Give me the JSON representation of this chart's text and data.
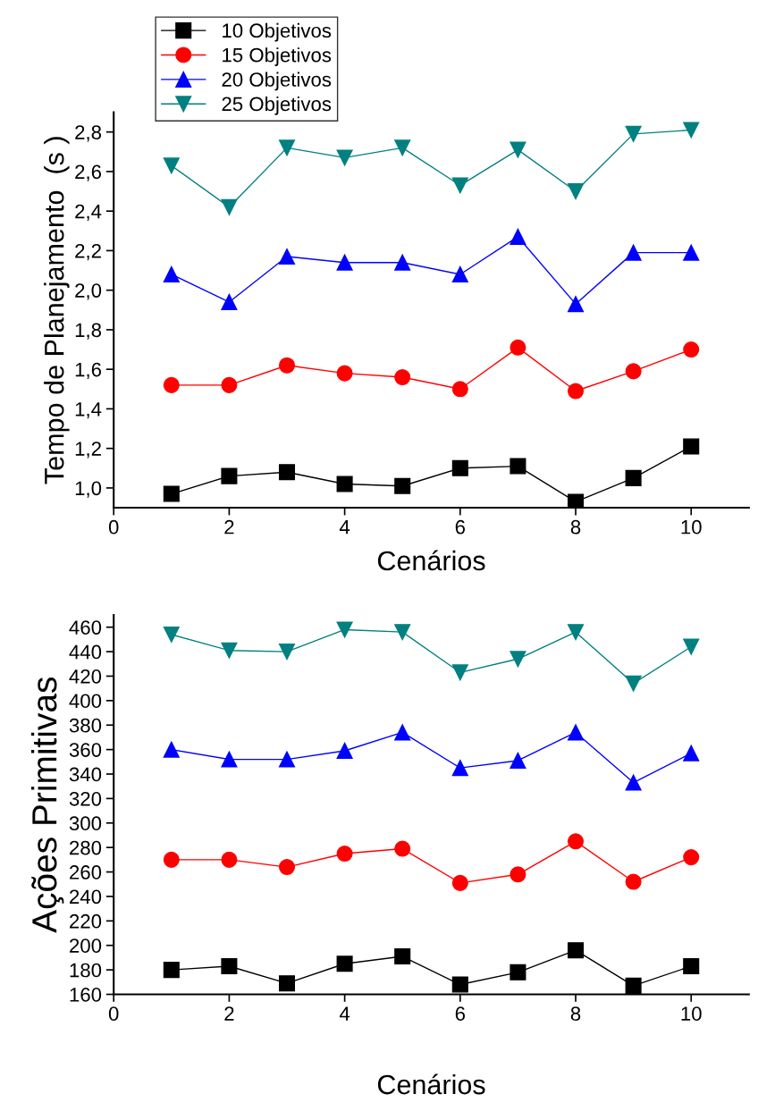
{
  "chart_data": [
    {
      "type": "line",
      "xlabel": "Cenários",
      "ylabel": "Tempo de Planejamento  (s )",
      "legend": "top left",
      "grid": false,
      "x": [
        1,
        2,
        3,
        4,
        5,
        6,
        7,
        8,
        9,
        10
      ],
      "xlim": [
        0,
        11
      ],
      "xticks": [
        0,
        2,
        4,
        6,
        8,
        10
      ],
      "ylim": [
        0.9,
        2.9
      ],
      "yticks": [
        {
          "value": 1.0,
          "label": "1,0"
        },
        {
          "value": 1.2,
          "label": "1,2"
        },
        {
          "value": 1.4,
          "label": "1,4"
        },
        {
          "value": 1.6,
          "label": "1,6"
        },
        {
          "value": 1.8,
          "label": "1,8"
        },
        {
          "value": 2.0,
          "label": "2,0"
        },
        {
          "value": 2.2,
          "label": "2,2"
        },
        {
          "value": 2.4,
          "label": "2,4"
        },
        {
          "value": 2.6,
          "label": "2,6"
        },
        {
          "value": 2.8,
          "label": "2,8"
        }
      ],
      "series": [
        {
          "name": "10 Objetivos",
          "color": "#000000",
          "marker": "square",
          "values": [
            0.97,
            1.06,
            1.08,
            1.02,
            1.01,
            1.1,
            1.11,
            0.93,
            1.05,
            1.21
          ]
        },
        {
          "name": "15 Objetivos",
          "color": "#ff0000",
          "marker": "circle",
          "values": [
            1.52,
            1.52,
            1.62,
            1.58,
            1.56,
            1.5,
            1.71,
            1.49,
            1.59,
            1.7
          ]
        },
        {
          "name": "20 Objetivos",
          "color": "#0000ff",
          "marker": "triangle",
          "values": [
            2.08,
            1.94,
            2.17,
            2.14,
            2.14,
            2.08,
            2.27,
            1.93,
            2.19,
            2.19
          ]
        },
        {
          "name": "25 Objetivos",
          "color": "#008080",
          "marker": "triangle_down",
          "values": [
            2.63,
            2.42,
            2.72,
            2.67,
            2.72,
            2.53,
            2.71,
            2.5,
            2.79,
            2.81
          ]
        }
      ]
    },
    {
      "type": "line",
      "xlabel": "Cenários",
      "ylabel": "Ações Primitivas",
      "legend": false,
      "grid": false,
      "x": [
        1,
        2,
        3,
        4,
        5,
        6,
        7,
        8,
        9,
        10
      ],
      "xlim": [
        0,
        11
      ],
      "xticks": [
        0,
        2,
        4,
        6,
        8,
        10
      ],
      "ylim": [
        160,
        470
      ],
      "yticks": [
        160,
        180,
        200,
        220,
        240,
        260,
        280,
        300,
        320,
        340,
        360,
        380,
        400,
        420,
        440,
        460
      ],
      "series": [
        {
          "color": "#000000",
          "marker": "square",
          "values": [
            180,
            183,
            169,
            185,
            191,
            168,
            178,
            196,
            167,
            183
          ]
        },
        {
          "color": "#ff0000",
          "marker": "circle",
          "values": [
            270,
            270,
            264,
            275,
            279,
            251,
            258,
            285,
            252,
            272
          ]
        },
        {
          "color": "#0000ff",
          "marker": "triangle",
          "values": [
            360,
            352,
            352,
            359,
            374,
            345,
            351,
            374,
            333,
            357
          ]
        },
        {
          "color": "#008080",
          "marker": "triangle_down",
          "values": [
            454,
            441,
            440,
            458,
            456,
            423,
            434,
            456,
            414,
            444
          ]
        }
      ]
    }
  ]
}
